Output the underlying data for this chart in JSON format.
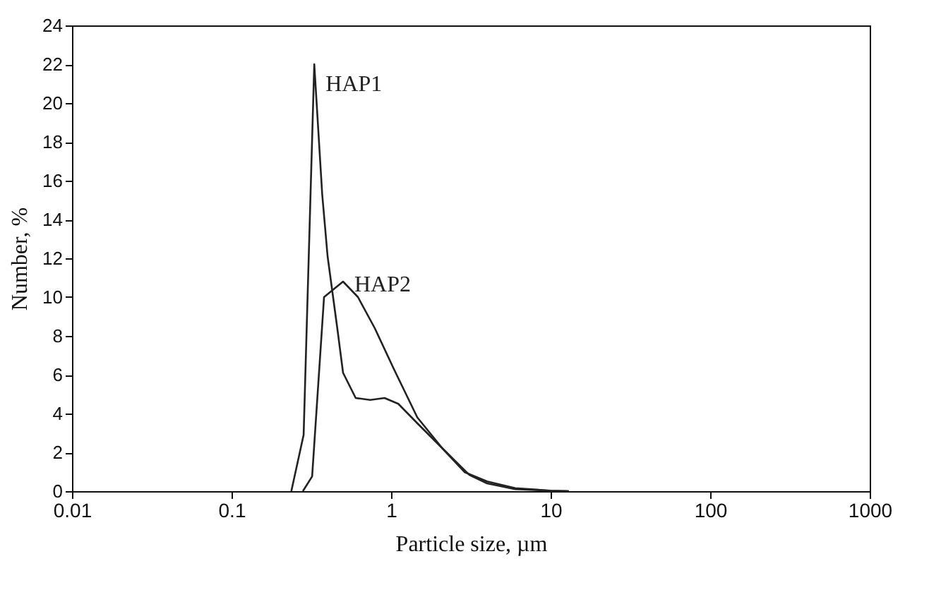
{
  "chart_data": {
    "type": "line",
    "xlabel": "Particle size, µm",
    "ylabel": "Number, %",
    "log": "x",
    "grid": false,
    "marker": "none",
    "line_style": "solid",
    "xlim": [
      0.01,
      1000
    ],
    "xticks": [
      0.01,
      0.1,
      1,
      10,
      100,
      1000
    ],
    "ylim": [
      0,
      24
    ],
    "yticks": [
      0,
      2,
      4,
      6,
      8,
      10,
      12,
      14,
      16,
      18,
      20,
      22,
      24
    ],
    "series": [
      {
        "name": "HAP1",
        "color": "#222222",
        "x": [
          0.237,
          0.283,
          0.33,
          0.37,
          0.4,
          0.46,
          0.5,
          0.6,
          0.74,
          0.91,
          1.11,
          1.46,
          2.1,
          2.9,
          4,
          6,
          10,
          13
        ],
        "values": [
          0,
          2.9,
          22,
          15.3,
          12.1,
          8.4,
          6.1,
          4.8,
          4.7,
          4.8,
          4.5,
          3.5,
          2.2,
          0.97,
          0.5,
          0.15,
          0.03,
          0
        ]
      },
      {
        "name": "HAP2",
        "color": "#222222",
        "x": [
          0.28,
          0.32,
          0.38,
          0.5,
          0.62,
          0.79,
          1.04,
          1.46,
          2.1,
          3.1,
          4,
          6,
          10,
          13
        ],
        "values": [
          0,
          0.76,
          10,
          10.8,
          10,
          8.4,
          6.3,
          3.8,
          2.2,
          0.83,
          0.4,
          0.1,
          0.02,
          0
        ]
      }
    ]
  }
}
